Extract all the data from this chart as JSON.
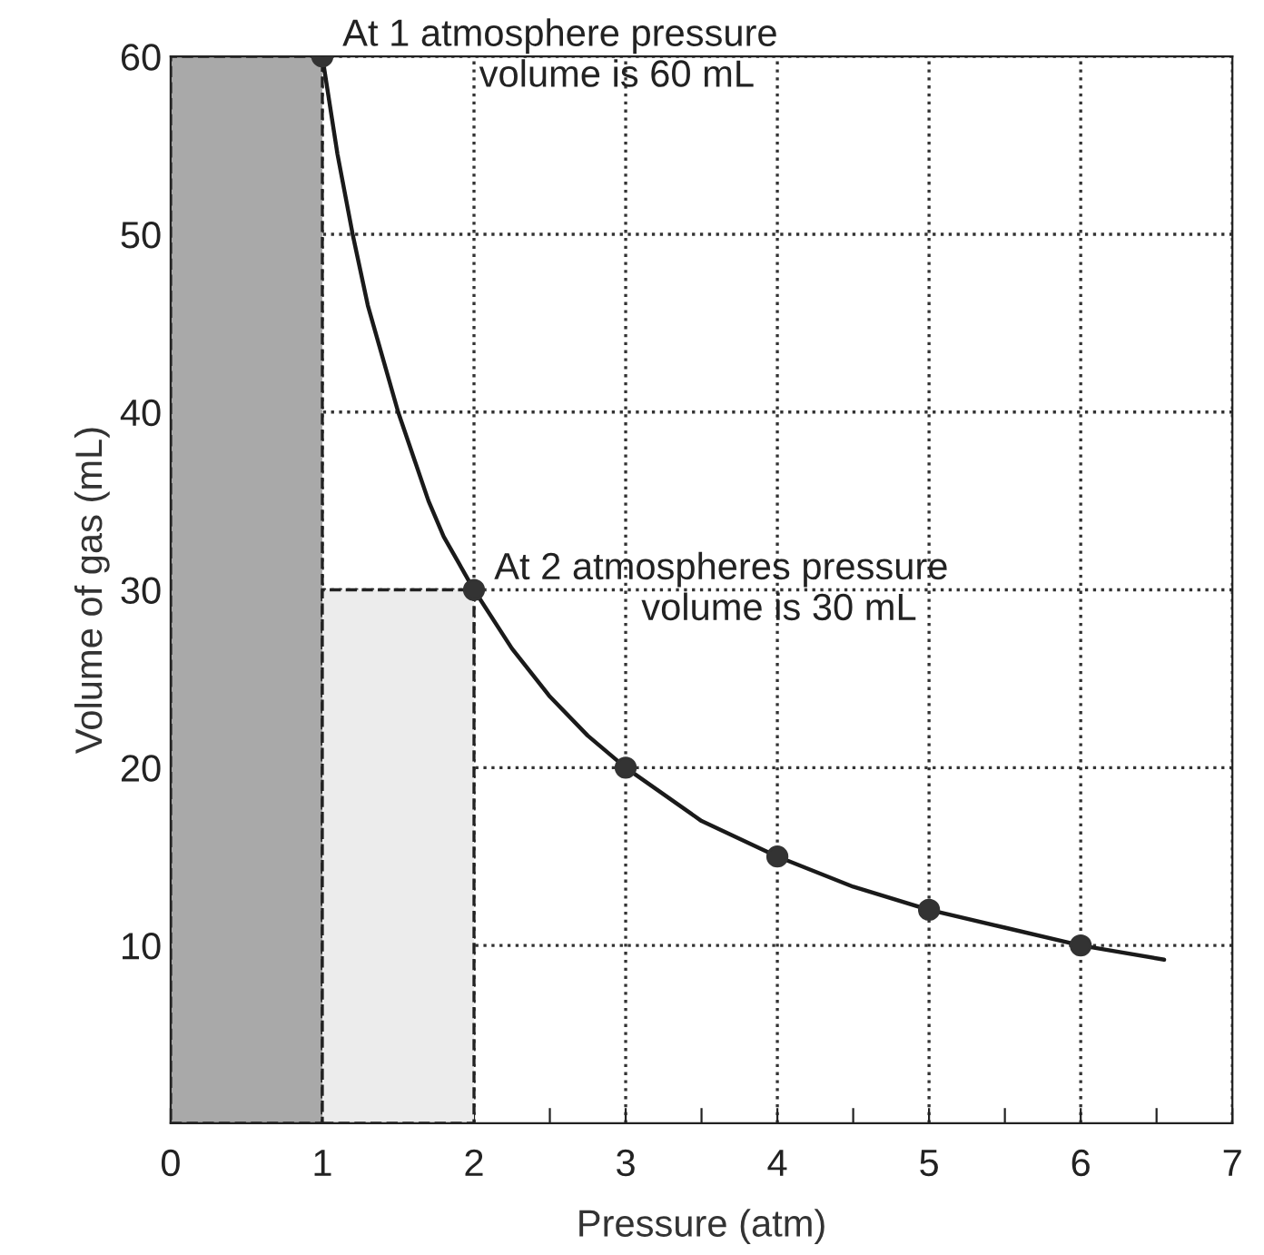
{
  "chart_data": {
    "type": "line",
    "xlabel": "Pressure (atm)",
    "ylabel": "Volume of gas (mL)",
    "xlim": [
      0,
      7
    ],
    "ylim": [
      0,
      60
    ],
    "xticks": [
      0,
      {
        "value": 0.5,
        "label": null
      },
      1,
      {
        "value": 1.5,
        "label": null
      },
      2,
      {
        "value": 2.5,
        "label": null
      },
      3,
      {
        "value": 3.5,
        "label": null
      },
      4,
      {
        "value": 4.5,
        "label": null
      },
      5,
      {
        "value": 5.5,
        "label": null
      },
      6,
      {
        "value": 6.5,
        "label": null
      },
      7
    ],
    "yticks": [
      10,
      20,
      30,
      40,
      50,
      60
    ],
    "grid": true,
    "line_style": "solid",
    "series": [
      {
        "type": "bar",
        "x": [
          0.5,
          1.5
        ],
        "values": [
          60,
          30
        ],
        "colors": [
          "#a9a9a9",
          "#ececec"
        ]
      },
      {
        "color": "#1a1a1a",
        "marker": "none",
        "x": [
          1,
          1.1,
          1.2,
          1.3,
          1.4,
          1.5,
          1.6,
          1.7,
          1.8,
          1.9,
          2,
          2.25,
          2.5,
          2.75,
          3,
          3.5,
          4,
          4.5,
          5,
          5.5,
          6,
          6.55
        ],
        "values": [
          60,
          54.5,
          50,
          46,
          43,
          40,
          37.5,
          35,
          33,
          31.5,
          30,
          26.7,
          24,
          21.8,
          20,
          17,
          15,
          13.3,
          12,
          11,
          10,
          9.2
        ]
      },
      {
        "type": "scatter",
        "color": "#333333",
        "marker": "circle",
        "x": [
          1,
          2,
          3,
          4,
          5,
          6
        ],
        "values": [
          60,
          30,
          20,
          15,
          12,
          10
        ]
      }
    ],
    "annotations": [
      {
        "text": "At 1 atmosphere pressure\n             volume is 60 mL",
        "x": 1,
        "y": 60
      },
      {
        "text": "At 2 atmospheres pressure\n              volume is 30 mL",
        "x": 2,
        "y": 30
      }
    ]
  }
}
